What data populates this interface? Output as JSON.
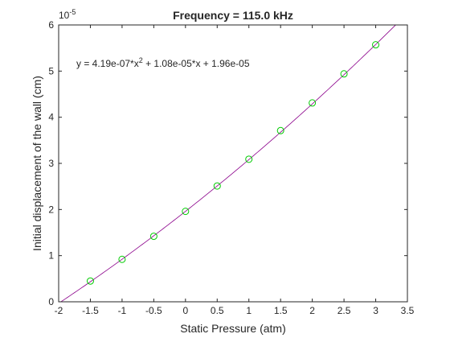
{
  "chart_data": {
    "type": "scatter",
    "title": "Frequency = 115.0 kHz",
    "xlabel": "Static Pressure (atm)",
    "ylabel": "Initial displacement of the wall (cm)",
    "xlim": [
      -2,
      3.5
    ],
    "ylim": [
      0,
      6e-05
    ],
    "x_ticks": [
      "-2",
      "-1.5",
      "-1",
      "-0.5",
      "0",
      "0.5",
      "1",
      "1.5",
      "2",
      "2.5",
      "3",
      "3.5"
    ],
    "y_ticks": [
      "0",
      "1",
      "2",
      "3",
      "4",
      "5",
      "6"
    ],
    "y_exponent": "10",
    "y_exponent_power": "-5",
    "grid": false,
    "legend": null,
    "annotation": {
      "prefix": "y = 4.19e-07*x",
      "power": "2",
      "suffix": " + 1.08e-05*x + 1.96e-05"
    },
    "series": [
      {
        "kind": "markers",
        "marker": "circle",
        "color": "#00cc00",
        "x": [
          -1.5,
          -1,
          -0.5,
          0,
          0.5,
          1,
          1.5,
          2,
          2.5,
          3
        ],
        "y": [
          4.5e-06,
          9.2e-06,
          1.42e-05,
          1.96e-05,
          2.51e-05,
          3.09e-05,
          3.71e-05,
          4.31e-05,
          4.94e-05,
          5.57e-05
        ]
      },
      {
        "kind": "fit-line",
        "color": "#8b008b",
        "coefficients": [
          4.19e-07,
          1.08e-05,
          1.96e-05
        ]
      }
    ]
  }
}
